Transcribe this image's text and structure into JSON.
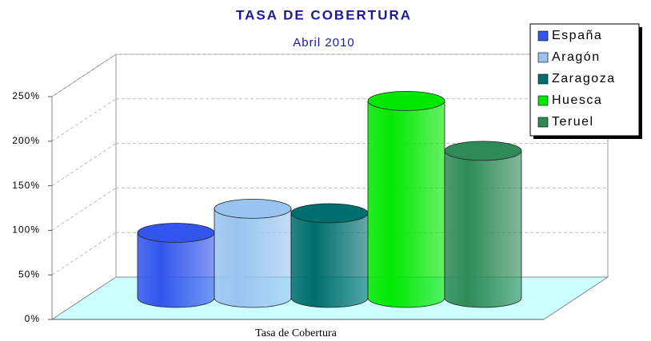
{
  "chart_data": {
    "type": "bar3d",
    "title": "TASA DE COBERTURA",
    "subtitle": "Abril 2010",
    "categories": [
      "Tasa de Cobertura"
    ],
    "series": [
      {
        "name": "España",
        "color": "#3355ee",
        "values": [
          73
        ]
      },
      {
        "name": "Aragón",
        "color": "#99c4f0",
        "values": [
          100
        ]
      },
      {
        "name": "Zaragoza",
        "color": "#006e6e",
        "values": [
          95
        ]
      },
      {
        "name": "Huesca",
        "color": "#00e800",
        "values": [
          221
        ]
      },
      {
        "name": "Teruel",
        "color": "#2e8b57",
        "values": [
          165
        ]
      }
    ],
    "ylim": [
      0,
      250
    ],
    "yticks": [
      {
        "value": 0,
        "label": "0%"
      },
      {
        "value": 50,
        "label": "50%"
      },
      {
        "value": 100,
        "label": "100%"
      },
      {
        "value": 150,
        "label": "150%"
      },
      {
        "value": 200,
        "label": "200%"
      },
      {
        "value": 250,
        "label": "250%"
      }
    ],
    "grid": true,
    "legend": "top-right"
  }
}
